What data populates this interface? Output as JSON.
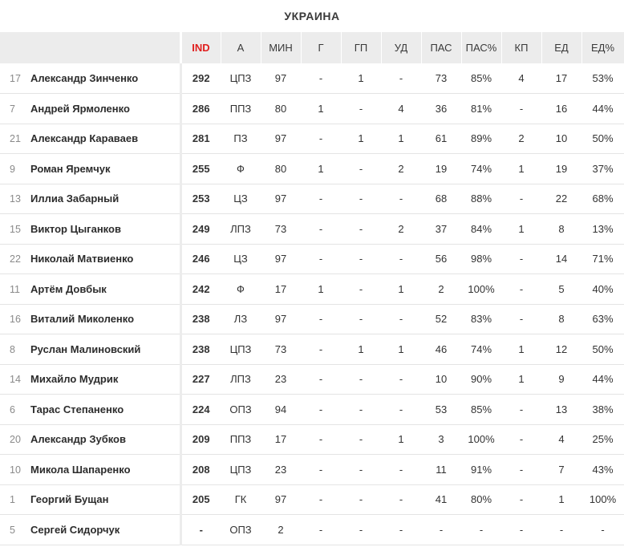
{
  "title": "УКРАИНА",
  "columns": [
    "IND",
    "А",
    "МИН",
    "Г",
    "ГП",
    "УД",
    "ПАС",
    "ПАС%",
    "КП",
    "ЕД",
    "ЕД%"
  ],
  "players": [
    {
      "number": "17",
      "name": "Александр Зинченко",
      "cells": [
        "292",
        "ЦПЗ",
        "97",
        "-",
        "1",
        "-",
        "73",
        "85%",
        "4",
        "17",
        "53%"
      ]
    },
    {
      "number": "7",
      "name": "Андрей Ярмоленко",
      "cells": [
        "286",
        "ППЗ",
        "80",
        "1",
        "-",
        "4",
        "36",
        "81%",
        "-",
        "16",
        "44%"
      ]
    },
    {
      "number": "21",
      "name": "Александр Караваев",
      "cells": [
        "281",
        "ПЗ",
        "97",
        "-",
        "1",
        "1",
        "61",
        "89%",
        "2",
        "10",
        "50%"
      ]
    },
    {
      "number": "9",
      "name": "Роман Яремчук",
      "cells": [
        "255",
        "Ф",
        "80",
        "1",
        "-",
        "2",
        "19",
        "74%",
        "1",
        "19",
        "37%"
      ]
    },
    {
      "number": "13",
      "name": "Иллиа Забарный",
      "cells": [
        "253",
        "ЦЗ",
        "97",
        "-",
        "-",
        "-",
        "68",
        "88%",
        "-",
        "22",
        "68%"
      ]
    },
    {
      "number": "15",
      "name": "Виктор Цыганков",
      "cells": [
        "249",
        "ЛПЗ",
        "73",
        "-",
        "-",
        "2",
        "37",
        "84%",
        "1",
        "8",
        "13%"
      ]
    },
    {
      "number": "22",
      "name": "Николай Матвиенко",
      "cells": [
        "246",
        "ЦЗ",
        "97",
        "-",
        "-",
        "-",
        "56",
        "98%",
        "-",
        "14",
        "71%"
      ]
    },
    {
      "number": "11",
      "name": "Артём Довбык",
      "cells": [
        "242",
        "Ф",
        "17",
        "1",
        "-",
        "1",
        "2",
        "100%",
        "-",
        "5",
        "40%"
      ]
    },
    {
      "number": "16",
      "name": "Виталий Миколенко",
      "cells": [
        "238",
        "ЛЗ",
        "97",
        "-",
        "-",
        "-",
        "52",
        "83%",
        "-",
        "8",
        "63%"
      ]
    },
    {
      "number": "8",
      "name": "Руслан Малиновский",
      "cells": [
        "238",
        "ЦПЗ",
        "73",
        "-",
        "1",
        "1",
        "46",
        "74%",
        "1",
        "12",
        "50%"
      ]
    },
    {
      "number": "14",
      "name": "Михайло Мудрик",
      "cells": [
        "227",
        "ЛПЗ",
        "23",
        "-",
        "-",
        "-",
        "10",
        "90%",
        "1",
        "9",
        "44%"
      ]
    },
    {
      "number": "6",
      "name": "Тарас Степаненко",
      "cells": [
        "224",
        "ОПЗ",
        "94",
        "-",
        "-",
        "-",
        "53",
        "85%",
        "-",
        "13",
        "38%"
      ]
    },
    {
      "number": "20",
      "name": "Александр Зубков",
      "cells": [
        "209",
        "ППЗ",
        "17",
        "-",
        "-",
        "1",
        "3",
        "100%",
        "-",
        "4",
        "25%"
      ]
    },
    {
      "number": "10",
      "name": "Микола Шапаренко",
      "cells": [
        "208",
        "ЦПЗ",
        "23",
        "-",
        "-",
        "-",
        "11",
        "91%",
        "-",
        "7",
        "43%"
      ]
    },
    {
      "number": "1",
      "name": "Георгий Бущан",
      "cells": [
        "205",
        "ГК",
        "97",
        "-",
        "-",
        "-",
        "41",
        "80%",
        "-",
        "1",
        "100%"
      ]
    },
    {
      "number": "5",
      "name": "Сергей Сидорчук",
      "cells": [
        "-",
        "ОПЗ",
        "2",
        "-",
        "-",
        "-",
        "-",
        "-",
        "-",
        "-",
        "-"
      ]
    }
  ]
}
